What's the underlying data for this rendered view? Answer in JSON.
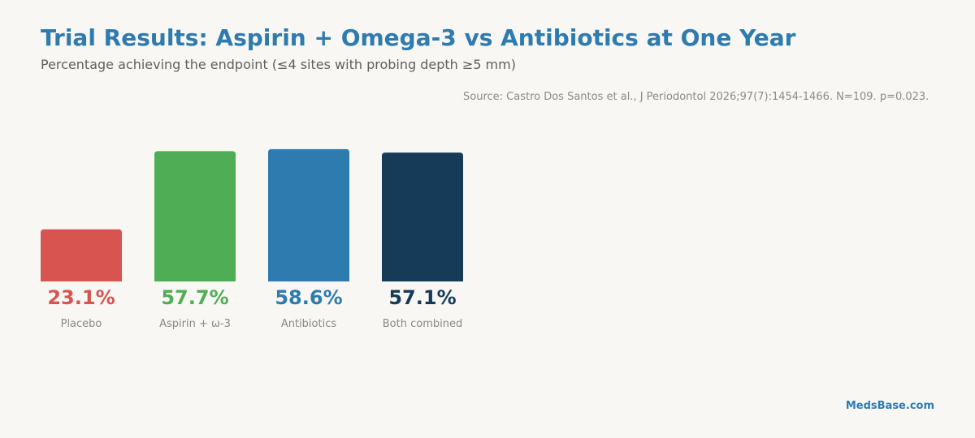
{
  "title": "Trial Results: Aspirin + Omega-3 vs Antibiotics at One Year",
  "subtitle": "Percentage achieving the endpoint (≤4 sites with probing depth ≥5 mm)",
  "source": "Source: Castro Dos Santos et al., J Periodontol 2026;97(7):1454-1466. N=109. p=0.023.",
  "brand": "MedsBase.com",
  "colors": {
    "title": "#2e7bb0",
    "placebo": "#d85450",
    "aspirin_omega3": "#4fae55",
    "antibiotics": "#2e7bb0",
    "both_combined": "#163b58",
    "category_label": "#888888"
  },
  "chart_data": {
    "type": "bar",
    "categories": [
      "Placebo",
      "Aspirin + ω-3",
      "Antibiotics",
      "Both combined"
    ],
    "values": [
      23.1,
      57.7,
      58.6,
      57.1
    ],
    "value_labels": [
      "23.1%",
      "57.7%",
      "58.6%",
      "57.1%"
    ],
    "colors": [
      "#d85450",
      "#4fae55",
      "#2e7bb0",
      "#163b58"
    ],
    "ylim": [
      0,
      60
    ],
    "grid": false,
    "legend": "none"
  }
}
